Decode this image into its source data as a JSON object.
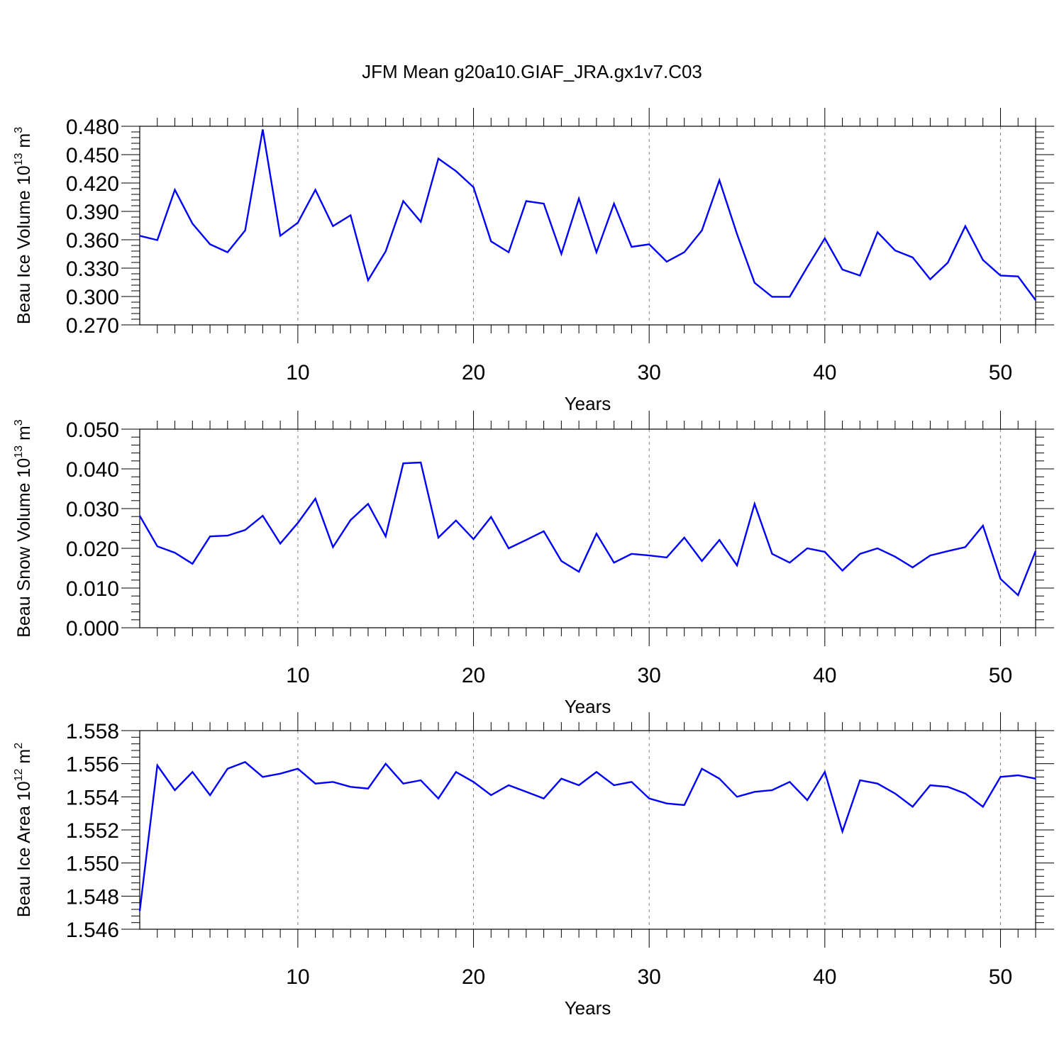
{
  "title": "JFM Mean g20a10.GIAF_JRA.gx1v7.C03",
  "colors": {
    "line": "#0000ff",
    "axis": "#000000",
    "grid": "#808080"
  },
  "chart_data": [
    {
      "type": "line",
      "name": "ice-volume",
      "ylabel": {
        "main": "Beau Ice Volume 10",
        "exp": "13",
        "unit": " m",
        "unit_exp": "3"
      },
      "xlabel": "Years",
      "xlim": [
        1,
        52
      ],
      "ylim": [
        0.27,
        0.48
      ],
      "xticks": [
        10,
        20,
        30,
        40,
        50
      ],
      "xtick_labels": [
        "10",
        "20",
        "30",
        "40",
        "50"
      ],
      "yticks": [
        0.27,
        0.3,
        0.33,
        0.36,
        0.39,
        0.42,
        0.45,
        0.48
      ],
      "ytick_labels": [
        "0.270",
        "0.300",
        "0.330",
        "0.360",
        "0.390",
        "0.420",
        "0.450",
        "0.480"
      ],
      "grid_x": [
        10,
        20,
        30,
        40,
        50
      ],
      "x": [
        1,
        2,
        3,
        4,
        5,
        6,
        7,
        8,
        9,
        10,
        11,
        12,
        13,
        14,
        15,
        16,
        17,
        18,
        19,
        20,
        21,
        22,
        23,
        24,
        25,
        26,
        27,
        28,
        29,
        30,
        31,
        32,
        33,
        34,
        35,
        36,
        37,
        38,
        39,
        40,
        41,
        42,
        43,
        44,
        45,
        46,
        47,
        48,
        49,
        50,
        51,
        52
      ],
      "values": [
        0.3642,
        0.3596,
        0.4128,
        0.3771,
        0.3552,
        0.3468,
        0.3698,
        0.4766,
        0.3642,
        0.3781,
        0.4128,
        0.3744,
        0.3859,
        0.3172,
        0.3477,
        0.4009,
        0.379,
        0.4458,
        0.4326,
        0.4156,
        0.3583,
        0.3468,
        0.4009,
        0.3982,
        0.345,
        0.4036,
        0.3468,
        0.3982,
        0.3525,
        0.3552,
        0.3368,
        0.3468,
        0.3698,
        0.4229,
        0.3661,
        0.3145,
        0.2997,
        0.2997,
        0.3312,
        0.3615,
        0.3285,
        0.3221,
        0.368,
        0.3487,
        0.3413,
        0.3182,
        0.3358,
        0.3744,
        0.3386,
        0.3221,
        0.3212,
        0.2962
      ]
    },
    {
      "type": "line",
      "name": "snow-volume",
      "ylabel": {
        "main": "Beau Snow Volume 10",
        "exp": "13",
        "unit": " m",
        "unit_exp": "3"
      },
      "xlabel": "Years",
      "xlim": [
        1,
        52
      ],
      "ylim": [
        0.0,
        0.05
      ],
      "xticks": [
        10,
        20,
        30,
        40,
        50
      ],
      "xtick_labels": [
        "10",
        "20",
        "30",
        "40",
        "50"
      ],
      "yticks": [
        0.0,
        0.01,
        0.02,
        0.03,
        0.04,
        0.05
      ],
      "ytick_labels": [
        "0.000",
        "0.010",
        "0.020",
        "0.030",
        "0.040",
        "0.050"
      ],
      "grid_x": [
        10,
        20,
        30,
        40,
        50
      ],
      "x": [
        1,
        2,
        3,
        4,
        5,
        6,
        7,
        8,
        9,
        10,
        11,
        12,
        13,
        14,
        15,
        16,
        17,
        18,
        19,
        20,
        21,
        22,
        23,
        24,
        25,
        26,
        27,
        28,
        29,
        30,
        31,
        32,
        33,
        34,
        35,
        36,
        37,
        38,
        39,
        40,
        41,
        42,
        43,
        44,
        45,
        46,
        47,
        48,
        49,
        50,
        51,
        52
      ],
      "values": [
        0.0282,
        0.0205,
        0.0189,
        0.0161,
        0.023,
        0.0232,
        0.0246,
        0.0282,
        0.0212,
        0.0264,
        0.0325,
        0.0203,
        0.0271,
        0.0312,
        0.023,
        0.0414,
        0.0416,
        0.0227,
        0.027,
        0.0223,
        0.0279,
        0.02,
        0.0221,
        0.0243,
        0.0168,
        0.0141,
        0.0237,
        0.0164,
        0.0186,
        0.0182,
        0.0177,
        0.0227,
        0.0168,
        0.0221,
        0.0157,
        0.0312,
        0.0186,
        0.0164,
        0.02,
        0.0191,
        0.0144,
        0.0186,
        0.02,
        0.0179,
        0.0152,
        0.0182,
        0.0193,
        0.0203,
        0.0257,
        0.0123,
        0.0082,
        0.0193
      ]
    },
    {
      "type": "line",
      "name": "ice-area",
      "ylabel": {
        "main": "Beau Ice Area 10",
        "exp": "12",
        "unit": " m",
        "unit_exp": "2"
      },
      "xlabel": "Years",
      "xlim": [
        1,
        52
      ],
      "ylim": [
        1.546,
        1.558
      ],
      "xticks": [
        10,
        20,
        30,
        40,
        50
      ],
      "xtick_labels": [
        "10",
        "20",
        "30",
        "40",
        "50"
      ],
      "yticks": [
        1.546,
        1.548,
        1.55,
        1.552,
        1.554,
        1.556,
        1.558
      ],
      "ytick_labels": [
        "1.546",
        "1.548",
        "1.550",
        "1.552",
        "1.554",
        "1.556",
        "1.558"
      ],
      "grid_x": [
        10,
        20,
        30,
        40,
        50
      ],
      "x": [
        1,
        2,
        3,
        4,
        5,
        6,
        7,
        8,
        9,
        10,
        11,
        12,
        13,
        14,
        15,
        16,
        17,
        18,
        19,
        20,
        21,
        22,
        23,
        24,
        25,
        26,
        27,
        28,
        29,
        30,
        31,
        32,
        33,
        34,
        35,
        36,
        37,
        38,
        39,
        40,
        41,
        42,
        43,
        44,
        45,
        46,
        47,
        48,
        49,
        50,
        51,
        52
      ],
      "values": [
        1.5471,
        1.5559,
        1.5544,
        1.5555,
        1.5541,
        1.5557,
        1.5561,
        1.5552,
        1.5554,
        1.5557,
        1.5548,
        1.5549,
        1.5546,
        1.5545,
        1.556,
        1.5548,
        1.555,
        1.5539,
        1.5555,
        1.5549,
        1.5541,
        1.5547,
        1.5543,
        1.5539,
        1.5551,
        1.5547,
        1.5555,
        1.5547,
        1.5549,
        1.5539,
        1.5536,
        1.5535,
        1.5557,
        1.5551,
        1.554,
        1.5543,
        1.5544,
        1.5549,
        1.5538,
        1.5555,
        1.5519,
        1.555,
        1.5548,
        1.5542,
        1.5534,
        1.5547,
        1.5546,
        1.5542,
        1.5534,
        1.5552,
        1.5553,
        1.5551
      ]
    }
  ]
}
